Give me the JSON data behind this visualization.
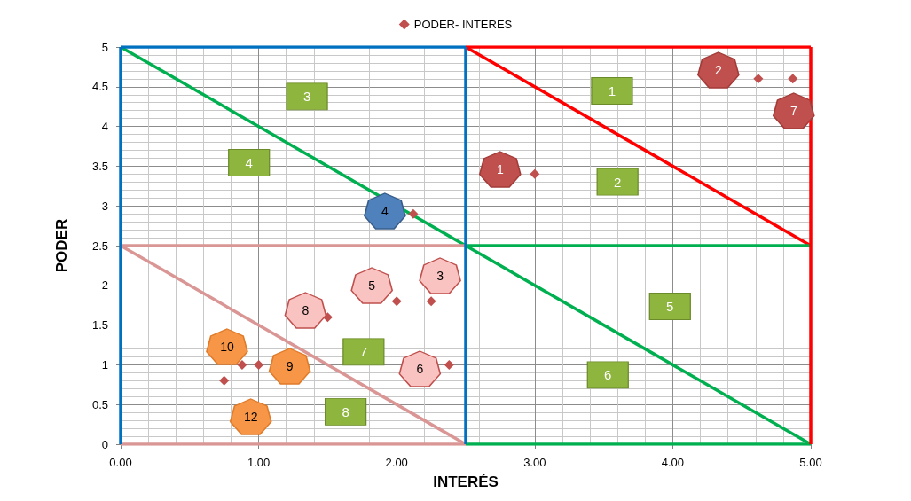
{
  "chart_data": {
    "type": "scatter",
    "xlabel": "INTERÉS",
    "ylabel": "PODER",
    "xlim": [
      0,
      5
    ],
    "ylim": [
      0,
      5
    ],
    "xticks": [
      {
        "value": 0,
        "label": "0.00"
      },
      {
        "value": 1,
        "label": "1.00"
      },
      {
        "value": 2,
        "label": "2.00"
      },
      {
        "value": 3,
        "label": "3.00"
      },
      {
        "value": 4,
        "label": "4.00"
      },
      {
        "value": 5,
        "label": "5.00"
      }
    ],
    "yticks": [
      0,
      0.5,
      1,
      1.5,
      2,
      2.5,
      3,
      3.5,
      4,
      4.5,
      5
    ],
    "grid": true,
    "legend": "top",
    "marker": "diamond",
    "series": [
      {
        "name": "PODER- INTERES",
        "color": "#c0504d",
        "x": [
          2.12,
          3.0,
          4.62,
          4.87,
          0.75,
          0.88,
          1.0,
          1.5,
          2.0,
          2.25,
          2.38
        ],
        "values": [
          2.9,
          3.4,
          4.6,
          4.6,
          0.8,
          1.0,
          1.0,
          1.6,
          1.8,
          1.8,
          1.0
        ]
      },
      {
        "type": "line",
        "marker": "none",
        "color": "#00b050",
        "x": [
          0,
          2.5,
          5
        ],
        "values": [
          5,
          2.5,
          0
        ]
      },
      {
        "type": "line",
        "marker": "none",
        "color": "#ff0000",
        "x": [
          2.5,
          5
        ],
        "values": [
          5,
          2.5
        ]
      },
      {
        "type": "line",
        "marker": "none",
        "color": "#d99694",
        "x": [
          0,
          2.5
        ],
        "values": [
          2.5,
          0
        ]
      },
      {
        "type": "line",
        "marker": "none",
        "color": "#0070c0",
        "x": [
          0,
          2.5
        ],
        "values": [
          5,
          5
        ]
      },
      {
        "type": "line",
        "marker": "none",
        "color": "#ff0000",
        "x": [
          2.5,
          5
        ],
        "values": [
          5,
          5
        ]
      },
      {
        "type": "line",
        "marker": "none",
        "color": "#d99694",
        "x": [
          0,
          2.5
        ],
        "values": [
          2.5,
          2.5
        ]
      },
      {
        "type": "line",
        "marker": "none",
        "color": "#00b050",
        "x": [
          2.5,
          5
        ],
        "values": [
          2.5,
          2.5
        ]
      },
      {
        "type": "line",
        "marker": "none",
        "color": "#d99694",
        "x": [
          0,
          2.5
        ],
        "values": [
          0,
          0
        ]
      },
      {
        "type": "line",
        "marker": "none",
        "color": "#00b050",
        "x": [
          2.5,
          5
        ],
        "values": [
          0,
          0
        ]
      }
    ],
    "ref_lines": [
      {
        "axis": "x",
        "value": 0,
        "color": "#0070c0"
      },
      {
        "axis": "x",
        "value": 2.5,
        "color": "#0070c0"
      },
      {
        "axis": "x",
        "value": 5,
        "color": "#ff0000"
      }
    ],
    "annotations": [
      {
        "text": "4",
        "x": 2.12,
        "y": 2.9
      },
      {
        "text": "1",
        "x": 3.0,
        "y": 3.4
      },
      {
        "text": "2",
        "x": 4.62,
        "y": 4.6
      },
      {
        "text": "7",
        "x": 4.87,
        "y": 4.6
      },
      {
        "text": "12",
        "x": 0.75,
        "y": 0.8
      },
      {
        "text": "10",
        "x": 0.88,
        "y": 1.0
      },
      {
        "text": "9",
        "x": 1.0,
        "y": 1.0
      },
      {
        "text": "8",
        "x": 1.5,
        "y": 1.6
      },
      {
        "text": "5",
        "x": 2.0,
        "y": 1.8
      },
      {
        "text": "3",
        "x": 2.25,
        "y": 1.8
      },
      {
        "text": "6",
        "x": 2.38,
        "y": 1.0
      },
      "1",
      "2",
      "3",
      "4",
      "5",
      "6",
      "7",
      "8"
    ]
  }
}
